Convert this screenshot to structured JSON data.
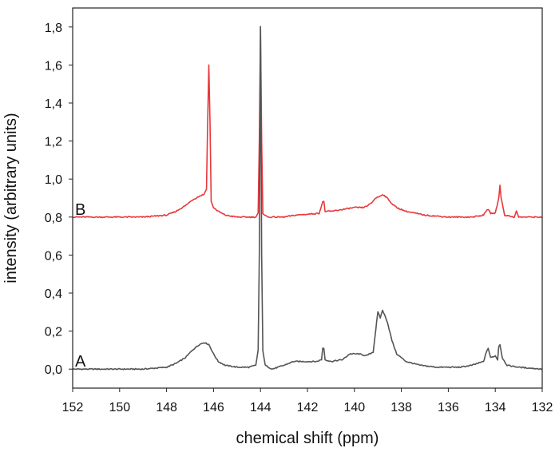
{
  "chart_data": {
    "type": "line",
    "title": "",
    "xlabel": "chemical shift (ppm)",
    "ylabel": "intensity (arbitrary units)",
    "xlim": [
      152,
      132
    ],
    "ylim": [
      -0.1,
      1.9
    ],
    "x_reversed": true,
    "grid": false,
    "xticks": [
      152,
      150,
      148,
      146,
      144,
      142,
      140,
      138,
      136,
      134,
      132
    ],
    "xtick_labels": [
      "152",
      "150",
      "148",
      "146",
      "144",
      "142",
      "140",
      "138",
      "136",
      "134",
      "132"
    ],
    "yticks": [
      0.0,
      0.2,
      0.4,
      0.6,
      0.8,
      1.0,
      1.2,
      1.4,
      1.6,
      1.8
    ],
    "ytick_labels": [
      "0,0",
      "0,2",
      "0,4",
      "0,6",
      "0,8",
      "1,0",
      "1,2",
      "1,4",
      "1,6",
      "1,8"
    ],
    "series": [
      {
        "name": "A",
        "color": "#555555",
        "points": [
          [
            152.0,
            0.0
          ],
          [
            151.0,
            0.0
          ],
          [
            150.0,
            0.0
          ],
          [
            149.0,
            0.0
          ],
          [
            148.5,
            0.005
          ],
          [
            148.0,
            0.01
          ],
          [
            147.6,
            0.03
          ],
          [
            147.2,
            0.06
          ],
          [
            146.9,
            0.1
          ],
          [
            146.6,
            0.13
          ],
          [
            146.4,
            0.14
          ],
          [
            146.2,
            0.13
          ],
          [
            146.0,
            0.08
          ],
          [
            145.8,
            0.04
          ],
          [
            145.5,
            0.02
          ],
          [
            145.0,
            0.01
          ],
          [
            144.5,
            0.01
          ],
          [
            144.2,
            0.02
          ],
          [
            144.1,
            0.1
          ],
          [
            144.05,
            0.6
          ],
          [
            144.0,
            1.8
          ],
          [
            143.95,
            0.6
          ],
          [
            143.9,
            0.1
          ],
          [
            143.8,
            0.02
          ],
          [
            143.5,
            0.0
          ],
          [
            143.0,
            0.02
          ],
          [
            142.6,
            0.04
          ],
          [
            142.0,
            0.04
          ],
          [
            141.6,
            0.04
          ],
          [
            141.4,
            0.05
          ],
          [
            141.35,
            0.11
          ],
          [
            141.3,
            0.11
          ],
          [
            141.25,
            0.05
          ],
          [
            141.0,
            0.04
          ],
          [
            140.5,
            0.05
          ],
          [
            140.2,
            0.08
          ],
          [
            139.8,
            0.08
          ],
          [
            139.5,
            0.07
          ],
          [
            139.2,
            0.09
          ],
          [
            139.05,
            0.25
          ],
          [
            139.0,
            0.3
          ],
          [
            138.9,
            0.27
          ],
          [
            138.8,
            0.31
          ],
          [
            138.6,
            0.25
          ],
          [
            138.4,
            0.15
          ],
          [
            138.2,
            0.08
          ],
          [
            137.8,
            0.04
          ],
          [
            137.2,
            0.02
          ],
          [
            136.5,
            0.01
          ],
          [
            135.5,
            0.01
          ],
          [
            135.0,
            0.02
          ],
          [
            134.5,
            0.04
          ],
          [
            134.35,
            0.1
          ],
          [
            134.3,
            0.11
          ],
          [
            134.2,
            0.06
          ],
          [
            134.0,
            0.07
          ],
          [
            133.9,
            0.05
          ],
          [
            133.85,
            0.12
          ],
          [
            133.8,
            0.13
          ],
          [
            133.7,
            0.06
          ],
          [
            133.5,
            0.02
          ],
          [
            133.0,
            0.01
          ],
          [
            132.0,
            0.0
          ]
        ]
      },
      {
        "name": "B",
        "color": "#e8373b",
        "points": [
          [
            152.0,
            0.8
          ],
          [
            151.0,
            0.8
          ],
          [
            150.0,
            0.8
          ],
          [
            149.0,
            0.8
          ],
          [
            148.5,
            0.805
          ],
          [
            148.0,
            0.81
          ],
          [
            147.6,
            0.83
          ],
          [
            147.2,
            0.86
          ],
          [
            146.9,
            0.89
          ],
          [
            146.6,
            0.91
          ],
          [
            146.4,
            0.92
          ],
          [
            146.3,
            0.95
          ],
          [
            146.25,
            1.3
          ],
          [
            146.2,
            1.6
          ],
          [
            146.15,
            1.3
          ],
          [
            146.1,
            0.88
          ],
          [
            146.0,
            0.85
          ],
          [
            145.8,
            0.83
          ],
          [
            145.5,
            0.81
          ],
          [
            145.0,
            0.8
          ],
          [
            144.5,
            0.8
          ],
          [
            144.2,
            0.8
          ],
          [
            144.1,
            0.82
          ],
          [
            144.05,
            1.2
          ],
          [
            144.0,
            1.8
          ],
          [
            143.95,
            1.2
          ],
          [
            143.9,
            0.82
          ],
          [
            143.7,
            0.8
          ],
          [
            143.0,
            0.8
          ],
          [
            142.5,
            0.81
          ],
          [
            141.5,
            0.82
          ],
          [
            141.35,
            0.88
          ],
          [
            141.3,
            0.88
          ],
          [
            141.25,
            0.83
          ],
          [
            141.0,
            0.83
          ],
          [
            140.5,
            0.84
          ],
          [
            140.0,
            0.85
          ],
          [
            139.6,
            0.85
          ],
          [
            139.3,
            0.87
          ],
          [
            139.1,
            0.9
          ],
          [
            138.9,
            0.91
          ],
          [
            138.8,
            0.92
          ],
          [
            138.6,
            0.9
          ],
          [
            138.4,
            0.87
          ],
          [
            138.2,
            0.85
          ],
          [
            137.8,
            0.83
          ],
          [
            137.0,
            0.81
          ],
          [
            136.0,
            0.8
          ],
          [
            135.0,
            0.8
          ],
          [
            134.5,
            0.81
          ],
          [
            134.35,
            0.84
          ],
          [
            134.3,
            0.84
          ],
          [
            134.2,
            0.82
          ],
          [
            134.0,
            0.82
          ],
          [
            133.85,
            0.9
          ],
          [
            133.8,
            0.97
          ],
          [
            133.75,
            0.9
          ],
          [
            133.6,
            0.81
          ],
          [
            133.2,
            0.8
          ],
          [
            133.1,
            0.83
          ],
          [
            133.0,
            0.8
          ],
          [
            132.5,
            0.8
          ],
          [
            132.0,
            0.8
          ]
        ]
      }
    ]
  }
}
